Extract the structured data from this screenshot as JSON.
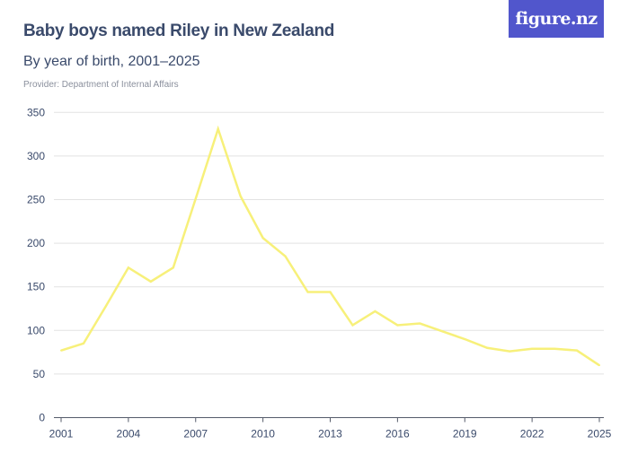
{
  "header": {
    "title": "Baby boys named Riley in New Zealand",
    "subtitle": "By year of birth, 2001–2025",
    "provider": "Provider: Department of Internal Affairs",
    "logo": "figure.nz"
  },
  "colors": {
    "line": "#f7f07a",
    "grid": "#e2e2e2",
    "text": "#3a4a6b",
    "logo_bg": "#5156cc"
  },
  "chart_data": {
    "type": "line",
    "title": "Baby boys named Riley in New Zealand",
    "subtitle": "By year of birth, 2001–2025",
    "x": [
      2001,
      2002,
      2003,
      2004,
      2005,
      2006,
      2007,
      2008,
      2009,
      2010,
      2011,
      2012,
      2013,
      2014,
      2015,
      2016,
      2017,
      2018,
      2019,
      2020,
      2021,
      2022,
      2023,
      2024,
      2025
    ],
    "values": [
      77,
      85,
      128,
      172,
      156,
      172,
      251,
      331,
      254,
      206,
      185,
      144,
      144,
      106,
      122,
      106,
      108,
      99,
      90,
      80,
      76,
      79,
      79,
      77,
      60
    ],
    "xticks": [
      "2001",
      "2004",
      "2007",
      "2010",
      "2013",
      "2016",
      "2019",
      "2022",
      "2025"
    ],
    "yticks": [
      "0",
      "50",
      "100",
      "150",
      "200",
      "250",
      "300",
      "350"
    ],
    "ylim": [
      0,
      350
    ],
    "xlim": [
      2001,
      2025
    ],
    "grid": true
  }
}
